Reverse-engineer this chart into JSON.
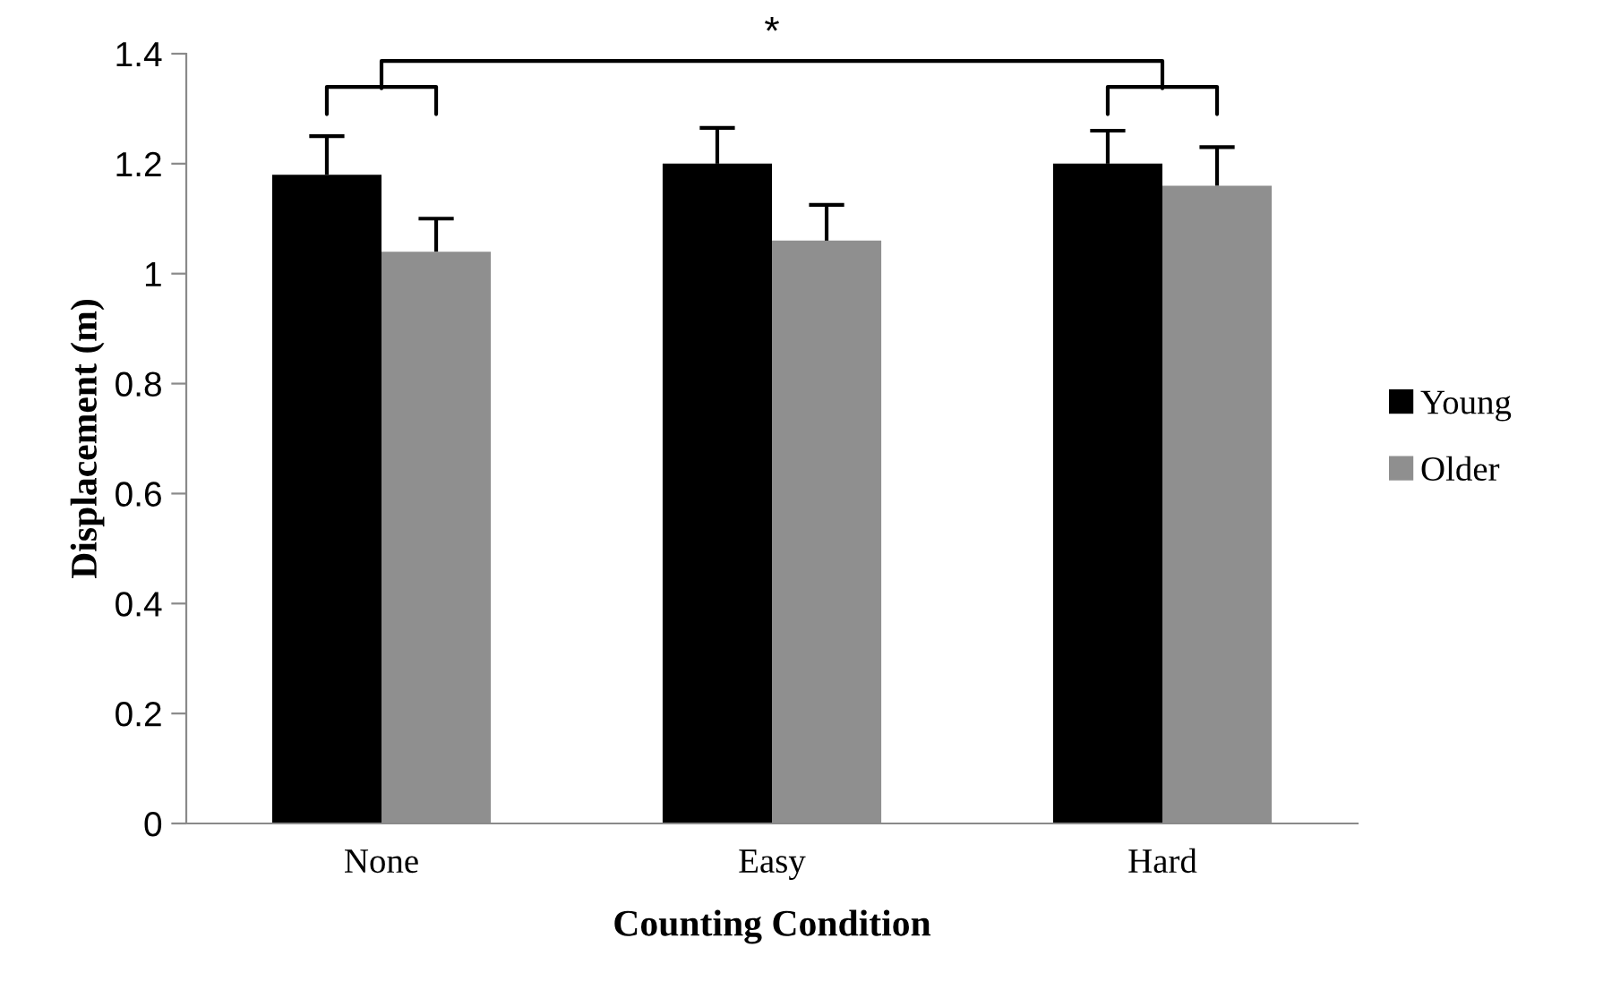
{
  "chart_data": {
    "type": "bar",
    "xlabel": "Counting Condition",
    "ylabel": "Displacement (m)",
    "categories": [
      "None",
      "Easy",
      "Hard"
    ],
    "series": [
      {
        "name": "Young",
        "color": "#000000",
        "values": [
          1.18,
          1.2,
          1.2
        ],
        "errors": [
          [
            1.18,
            1.25
          ],
          [
            1.2,
            1.265
          ],
          [
            1.2,
            1.26
          ]
        ]
      },
      {
        "name": "Older",
        "color": "#8f8f8f",
        "values": [
          1.04,
          1.06,
          1.16
        ],
        "errors": [
          [
            1.04,
            1.1
          ],
          [
            1.06,
            1.125
          ],
          [
            1.16,
            1.23
          ]
        ]
      }
    ],
    "ylim": [
      0,
      1.4
    ],
    "yticks": [
      0,
      0.2,
      0.4,
      0.6,
      0.8,
      1,
      1.2,
      1.4
    ],
    "grid": false,
    "legend": "right",
    "annotations": [
      "*"
    ]
  }
}
